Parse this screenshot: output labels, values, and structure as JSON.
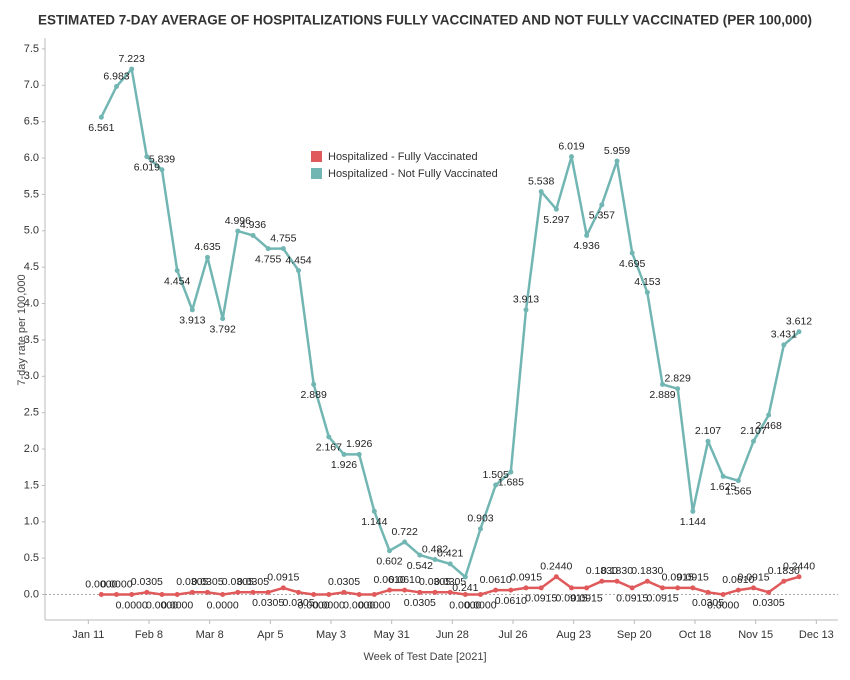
{
  "chart_data": {
    "type": "line",
    "title": "ESTIMATED 7-DAY AVERAGE OF HOSPITALIZATIONS FULLY VACCINATED AND NOT FULLY VACCINATED (PER 100,000)",
    "x_label": "Week of Test Date [2021]",
    "y_label": "7-day rate per 100,000",
    "x": [
      "2021-01-17",
      "2021-01-24",
      "2021-01-31",
      "2021-02-07",
      "2021-02-14",
      "2021-02-21",
      "2021-02-28",
      "2021-03-07",
      "2021-03-14",
      "2021-03-21",
      "2021-03-28",
      "2021-04-04",
      "2021-04-11",
      "2021-04-18",
      "2021-04-25",
      "2021-05-02",
      "2021-05-09",
      "2021-05-16",
      "2021-05-23",
      "2021-05-30",
      "2021-06-06",
      "2021-06-13",
      "2021-06-20",
      "2021-06-27",
      "2021-07-04",
      "2021-07-11",
      "2021-07-18",
      "2021-07-25",
      "2021-08-01",
      "2021-08-08",
      "2021-08-15",
      "2021-08-22",
      "2021-08-29",
      "2021-09-05",
      "2021-09-12",
      "2021-09-19",
      "2021-09-26",
      "2021-10-03",
      "2021-10-10",
      "2021-10-17",
      "2021-10-24",
      "2021-10-31",
      "2021-11-07",
      "2021-11-14",
      "2021-11-21",
      "2021-11-28",
      "2021-12-05"
    ],
    "series": [
      {
        "name": "Hospitalized - Fully Vaccinated",
        "color": "#e05a5c",
        "values": [
          0,
          0,
          0,
          0.0305,
          0,
          0,
          0.0305,
          0.0305,
          0,
          0.0305,
          0.0305,
          0.0305,
          0.0915,
          0.0305,
          0,
          0,
          0.0305,
          0,
          0,
          0.061,
          0.061,
          0.0305,
          0.0305,
          0.0305,
          0,
          0,
          0.061,
          0.061,
          0.0915,
          0.0915,
          0.244,
          0.0915,
          0.0915,
          0.183,
          0.183,
          0.0915,
          0.183,
          0.0915,
          0.0915,
          0.0915,
          0.0305,
          0,
          0.061,
          0.0915,
          0.0305,
          0.183,
          0.244
        ],
        "value_labels": [
          "0.0000",
          "0.0000",
          "0.0000",
          "0.0305",
          "0.0000",
          "0.0000",
          "0.0305",
          "0.0305",
          "0.0000",
          "0.0305",
          "0.0305",
          "0.0305",
          "0.0915",
          "0.0305",
          "0.0000",
          "0.0000",
          "0.0305",
          "0.0000",
          "0.0000",
          "0.0610",
          "0.0610",
          "0.0305",
          "0.0305",
          "0.0305",
          "0.0000",
          "0.0000",
          "0.0610",
          "0.0610",
          "0.0915",
          "0.0915",
          "0.2440",
          "0.0915",
          "0.0915",
          "0.1830",
          "0.1830",
          "0.0915",
          "0.1830",
          "0.0915",
          "0.0915",
          "0.0915",
          "0.0305",
          "0.0000",
          "0.0610",
          "0.0915",
          "0.0305",
          "0.1830",
          "0.2440"
        ]
      },
      {
        "name": "Hospitalized - Not Fully Vaccinated",
        "color": "#72b6b3",
        "values": [
          6.561,
          6.983,
          7.223,
          6.019,
          5.839,
          4.454,
          3.913,
          4.635,
          3.792,
          4.996,
          4.936,
          4.755,
          4.755,
          4.454,
          2.889,
          2.167,
          1.926,
          1.926,
          1.144,
          0.602,
          0.722,
          0.542,
          0.482,
          0.421,
          0.241,
          0.903,
          1.505,
          1.685,
          3.913,
          5.538,
          5.297,
          6.019,
          4.936,
          5.357,
          5.959,
          4.695,
          4.153,
          2.889,
          2.829,
          1.144,
          2.107,
          1.625,
          1.565,
          2.107,
          2.468,
          3.431,
          3.612
        ]
      }
    ],
    "xlim": [
      "2020-12-22",
      "2021-12-23"
    ],
    "xticks": [
      {
        "value": "2021-01-11",
        "label": "Jan 11"
      },
      {
        "value": "2021-02-08",
        "label": "Feb 8"
      },
      {
        "value": "2021-03-08",
        "label": "Mar 8"
      },
      {
        "value": "2021-04-05",
        "label": "Apr 5"
      },
      {
        "value": "2021-05-03",
        "label": "May 3"
      },
      {
        "value": "2021-05-31",
        "label": "May 31"
      },
      {
        "value": "2021-06-28",
        "label": "Jun 28"
      },
      {
        "value": "2021-07-26",
        "label": "Jul 26"
      },
      {
        "value": "2021-08-23",
        "label": "Aug 23"
      },
      {
        "value": "2021-09-20",
        "label": "Sep 20"
      },
      {
        "value": "2021-10-18",
        "label": "Oct 18"
      },
      {
        "value": "2021-11-15",
        "label": "Nov 15"
      },
      {
        "value": "2021-12-13",
        "label": "Dec 13"
      }
    ],
    "ylim": [
      -0.35,
      7.65
    ],
    "yticks": [
      {
        "value": 0,
        "label": "0.0"
      },
      0.5,
      {
        "value": 1,
        "label": "1.0"
      },
      1.5,
      {
        "value": 2,
        "label": "2.0"
      },
      2.5,
      {
        "value": 3,
        "label": "3.0"
      },
      3.5,
      {
        "value": 4,
        "label": "4.0"
      },
      4.5,
      {
        "value": 5,
        "label": "5.0"
      },
      5.5,
      {
        "value": 6,
        "label": "6.0"
      },
      6.5,
      {
        "value": 7,
        "label": "7.0"
      },
      7.5
    ],
    "grid": false,
    "legend": "top-center"
  }
}
